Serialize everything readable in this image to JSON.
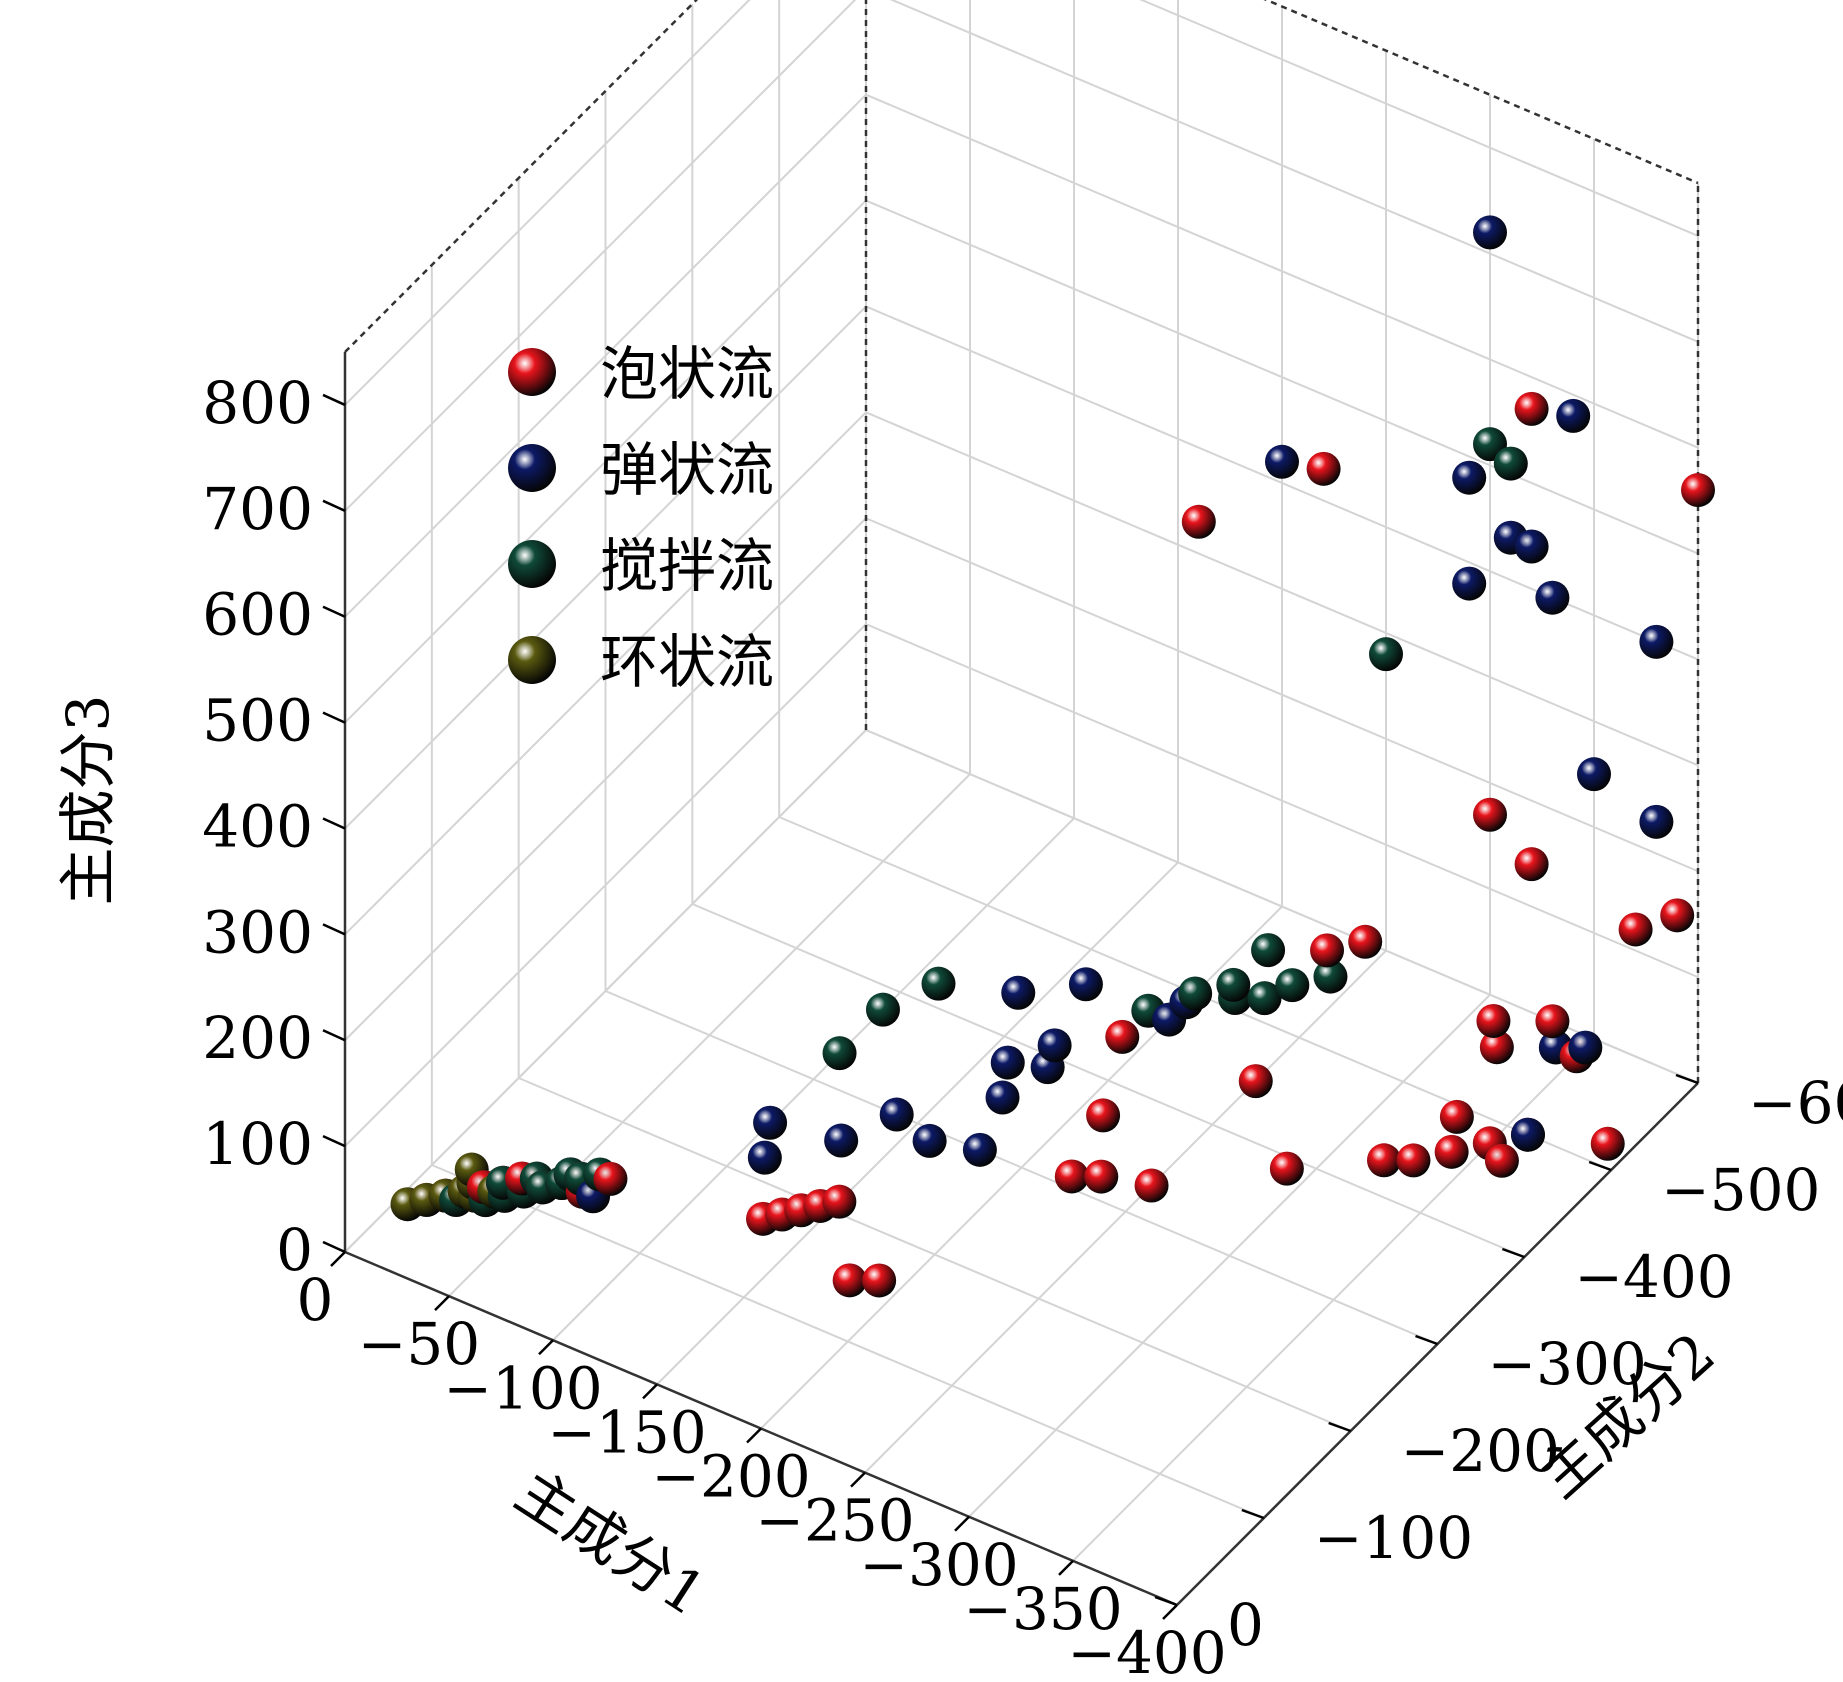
{
  "chart_data": {
    "type": "scatter3d",
    "title": "",
    "xlabel": "主成分1",
    "ylabel": "主成分2",
    "zlabel": "主成分3",
    "xlim": [
      0,
      -400
    ],
    "ylim": [
      0,
      -600
    ],
    "zlim": [
      0,
      850
    ],
    "x_ticks": [
      "0",
      "−50",
      "−100",
      "−150",
      "−200",
      "−250",
      "−300",
      "−350",
      "−400"
    ],
    "y_ticks": [
      "0",
      "−100",
      "−200",
      "−300",
      "−400",
      "−500",
      "−600"
    ],
    "z_ticks": [
      "0",
      "100",
      "200",
      "300",
      "400",
      "500",
      "600",
      "700",
      "800"
    ],
    "x_tick_values": [
      0,
      -50,
      -100,
      -150,
      -200,
      -250,
      -300,
      -350,
      -400
    ],
    "y_tick_values": [
      0,
      -100,
      -200,
      -300,
      -400,
      -500,
      -600
    ],
    "z_tick_values": [
      0,
      100,
      200,
      300,
      400,
      500,
      600,
      700,
      800
    ],
    "grid": true,
    "legend_position": "top-left",
    "series": [
      {
        "name": "泡状流",
        "color": "#e8141c",
        "points": [
          [
            -10,
            -70,
            0
          ],
          [
            -15,
            -80,
            0
          ],
          [
            -20,
            -90,
            0
          ],
          [
            -25,
            -100,
            0
          ],
          [
            -30,
            -110,
            0
          ],
          [
            -35,
            -120,
            0
          ],
          [
            -45,
            -120,
            0
          ],
          [
            -50,
            -130,
            0
          ],
          [
            -55,
            -140,
            0
          ],
          [
            -60,
            -130,
            0
          ],
          [
            -65,
            -150,
            0
          ],
          [
            -130,
            -170,
            0
          ],
          [
            -135,
            -180,
            0
          ],
          [
            -140,
            -190,
            0
          ],
          [
            -145,
            -200,
            0
          ],
          [
            -150,
            -210,
            0
          ],
          [
            -180,
            -150,
            0
          ],
          [
            -190,
            -160,
            0
          ],
          [
            -220,
            -310,
            0
          ],
          [
            -230,
            -320,
            0
          ],
          [
            -210,
            -370,
            0
          ],
          [
            -250,
            -330,
            0
          ],
          [
            -290,
            -390,
            0
          ],
          [
            -190,
            -440,
            0
          ],
          [
            -250,
            -450,
            0
          ],
          [
            -320,
            -430,
            0
          ],
          [
            -330,
            -440,
            0
          ],
          [
            -340,
            -460,
            0
          ],
          [
            -360,
            -470,
            0
          ],
          [
            -350,
            -480,
            0
          ],
          [
            -330,
            -490,
            0
          ],
          [
            -360,
            -500,
            0
          ],
          [
            -390,
            -520,
            0
          ],
          [
            -320,
            -560,
            0
          ],
          [
            -330,
            -600,
            0
          ],
          [
            -230,
            -580,
            0
          ],
          [
            -350,
            -580,
            0
          ],
          [
            -240,
            -600,
            0
          ],
          [
            -310,
            -580,
            0
          ],
          [
            -300,
            -600,
            170
          ],
          [
            -320,
            -600,
            140
          ],
          [
            -370,
            -600,
            120
          ],
          [
            -390,
            -600,
            150
          ],
          [
            -160,
            -600,
            330
          ],
          [
            -220,
            -600,
            430
          ],
          [
            -320,
            -600,
            570
          ],
          [
            -400,
            -600,
            560
          ]
        ]
      },
      {
        "name": "弹状流",
        "color": "#0d1a66",
        "points": [
          [
            -50,
            -140,
            0
          ],
          [
            -65,
            -130,
            0
          ],
          [
            -100,
            -250,
            0
          ],
          [
            -110,
            -220,
            0
          ],
          [
            -130,
            -260,
            0
          ],
          [
            -140,
            -300,
            0
          ],
          [
            -160,
            -290,
            0
          ],
          [
            -180,
            -300,
            0
          ],
          [
            -170,
            -350,
            0
          ],
          [
            -160,
            -380,
            0
          ],
          [
            -170,
            -410,
            0
          ],
          [
            -175,
            -390,
            0
          ],
          [
            -140,
            -440,
            0
          ],
          [
            -160,
            -470,
            0
          ],
          [
            -200,
            -470,
            0
          ],
          [
            -200,
            -490,
            0
          ],
          [
            -360,
            -500,
            0
          ],
          [
            -340,
            -580,
            0
          ],
          [
            -350,
            -590,
            0
          ],
          [
            -350,
            -600,
            250
          ],
          [
            -330,
            -600,
            400
          ],
          [
            -290,
            -600,
            380
          ],
          [
            -310,
            -600,
            440
          ],
          [
            -320,
            -600,
            440
          ],
          [
            -290,
            -600,
            480
          ],
          [
            -340,
            -600,
            580
          ],
          [
            -200,
            -600,
            420
          ],
          [
            -380,
            -600,
            400
          ],
          [
            -380,
            -600,
            230
          ],
          [
            -300,
            -600,
            720
          ]
        ]
      },
      {
        "name": "搅拌流",
        "color": "#0f4a38",
        "points": [
          [
            -20,
            -80,
            0
          ],
          [
            -30,
            -90,
            0
          ],
          [
            -35,
            -100,
            0
          ],
          [
            -40,
            -110,
            0
          ],
          [
            -45,
            -120,
            0
          ],
          [
            -50,
            -130,
            0
          ],
          [
            -55,
            -140,
            0
          ],
          [
            -60,
            -150,
            0
          ],
          [
            -30,
            -110,
            0
          ],
          [
            -40,
            -125,
            0
          ],
          [
            -50,
            -140,
            0
          ],
          [
            -100,
            -330,
            0
          ],
          [
            -100,
            -380,
            0
          ],
          [
            -110,
            -420,
            0
          ],
          [
            -190,
            -470,
            0
          ],
          [
            -200,
            -500,
            0
          ],
          [
            -210,
            -520,
            0
          ],
          [
            -215,
            -510,
            0
          ],
          [
            -225,
            -520,
            0
          ],
          [
            -230,
            -540,
            0
          ],
          [
            -240,
            -560,
            0
          ],
          [
            -210,
            -560,
            0
          ],
          [
            -250,
            -600,
            280
          ],
          [
            -300,
            -600,
            520
          ],
          [
            -310,
            -600,
            510
          ]
        ]
      },
      {
        "name": "环状流",
        "color": "#5a5a10",
        "points": [
          [
            -5,
            -60,
            0
          ],
          [
            -10,
            -70,
            0
          ],
          [
            -15,
            -80,
            0
          ],
          [
            -20,
            -90,
            0
          ],
          [
            -25,
            -90,
            0
          ],
          [
            -30,
            -100,
            0
          ],
          [
            -20,
            -100,
            0
          ],
          [
            -15,
            -110,
            0
          ]
        ]
      }
    ]
  }
}
